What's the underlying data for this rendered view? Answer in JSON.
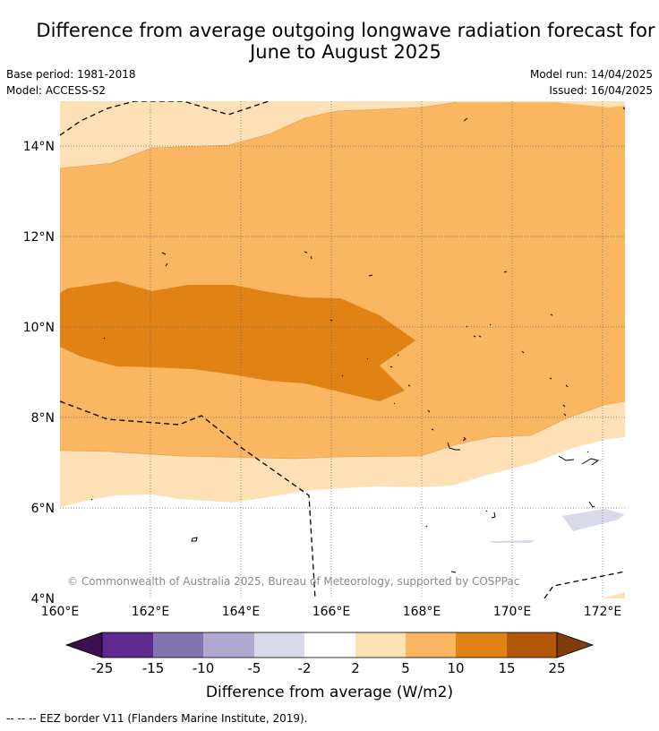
{
  "title": {
    "line1": "Difference from average outgoing longwave radiation forecast for",
    "line2": "June to August 2025"
  },
  "meta": {
    "base_period": "Base period: 1981-2018",
    "model": "Model: ACCESS-S2",
    "model_run": "Model run: 14/04/2025",
    "issued": "Issued: 16/04/2025"
  },
  "map": {
    "lat_labels": [
      "14°N",
      "12°N",
      "10°N",
      "8°N",
      "6°N",
      "4°N"
    ],
    "lon_labels": [
      "160°E",
      "162°E",
      "164°E",
      "166°E",
      "168°E",
      "170°E",
      "172°E"
    ],
    "copyright": "© Commonwealth of Australia 2025, Bureau of Meteorology, supported by COSPPac"
  },
  "colorbar": {
    "title": "Difference from average (W/m2)",
    "ticks": [
      "-25",
      "-15",
      "-10",
      "-5",
      "-2",
      "2",
      "5",
      "10",
      "15",
      "25"
    ],
    "colors": {
      "below_min": "#3b0f4f",
      "n25_n15": "#5e2a8e",
      "n15_n10": "#8373ae",
      "n10_n5": "#b2a9d3",
      "n5_n2": "#d9d9ec",
      "n2_2": "#ffffff",
      "p2_5": "#fee0b6",
      "p5_10": "#fbb662",
      "p10_15": "#e08214",
      "p15_25": "#b35806",
      "above_max": "#7f3b08"
    }
  },
  "footer": {
    "legend_line": "--  --  -- EEZ border V11 (Flanders Marine Institute, 2019)."
  }
}
